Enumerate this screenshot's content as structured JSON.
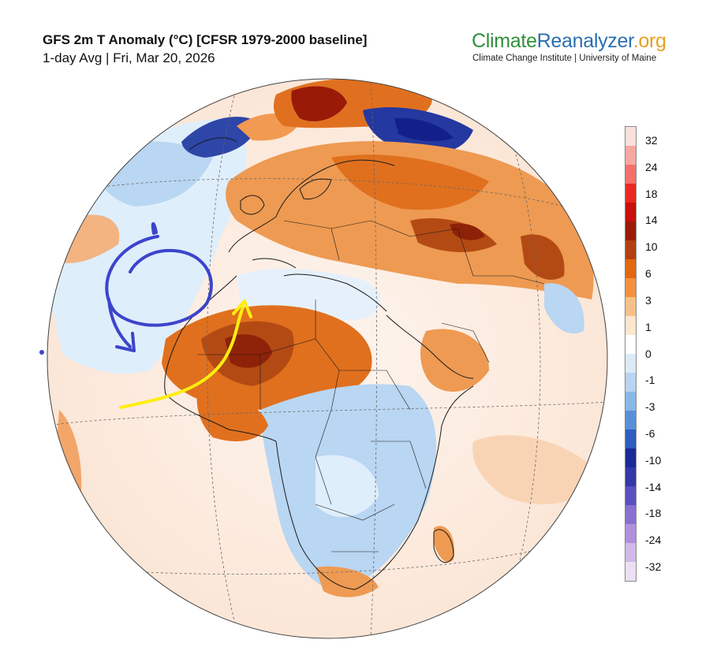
{
  "header": {
    "title": "GFS 2m T Anomaly (°C) [CFSR 1979-2000 baseline]",
    "subtitle": "1-day Avg | Fri, Mar 20, 2026"
  },
  "brand": {
    "part1": "Climate",
    "part2": "Reanalyzer",
    "part3": ".org",
    "tagline": "Climate Change Institute | University of Maine",
    "colors": {
      "part1": "#2f8f3a",
      "part2": "#2b6fb0",
      "part3": "#e8a020"
    }
  },
  "colorbar": {
    "labels": [
      "32",
      "24",
      "18",
      "14",
      "10",
      "6",
      "3",
      "1",
      "0",
      "-1",
      "-3",
      "-6",
      "-10",
      "-14",
      "-18",
      "-24",
      "-32"
    ],
    "colors": [
      "#fbe0dc",
      "#f7a8a0",
      "#f4706a",
      "#e82a20",
      "#c8100c",
      "#9a1a08",
      "#b34010",
      "#e06810",
      "#f29240",
      "#f8c088",
      "#fde6cc",
      "#ffffff",
      "#dceaf8",
      "#b8d4f0",
      "#88b8e8",
      "#5890d8",
      "#2e5cc0",
      "#1a2a98",
      "#3438a8",
      "#5a50c0",
      "#8870d0",
      "#b090dc",
      "#d0b8e8",
      "#ece0f4"
    ]
  },
  "annotations": {
    "circle_arrow_color": "#3c44cc",
    "yellow_arrow_color": "#ffee10"
  },
  "map": {
    "colors": {
      "ocean_neutral": "#fdf2ec",
      "warm_light": "#f6c9a2",
      "warm_mid": "#ee9a52",
      "warm_strong": "#e0701e",
      "warm_deep": "#b34a14",
      "hot": "#8e2208",
      "cool_light": "#dfeefb",
      "cool_mid": "#b9d6f2",
      "cool_deep": "#5a82d0",
      "cold": "#2438a0",
      "border": "#1a1a1a"
    }
  }
}
